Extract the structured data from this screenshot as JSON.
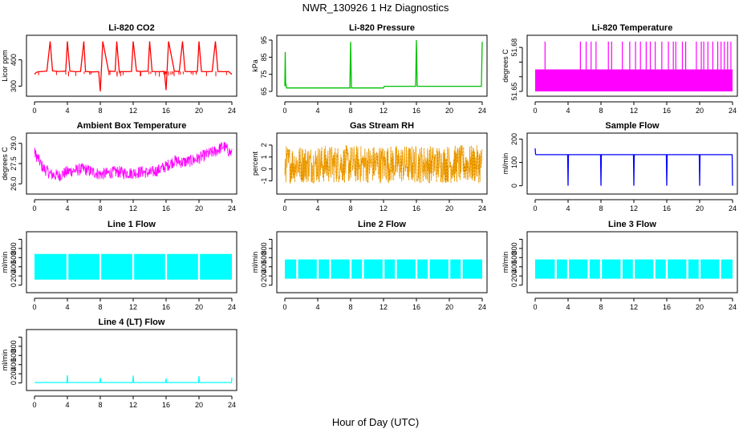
{
  "figure": {
    "title": "NWR_130926  1 Hz Diagnostics",
    "xlabel": "Hour of Day (UTC)"
  },
  "chart_data": [
    {
      "id": "li820_co2",
      "type": "line",
      "title": "Li-820 CO2",
      "ylabel": "Licor ppm",
      "color": "#ff0000",
      "xlim": [
        0,
        24
      ],
      "xticks": [
        0,
        4,
        8,
        12,
        16,
        20,
        24
      ],
      "ylim": [
        280,
        475
      ],
      "yticks": [
        300,
        400
      ],
      "series": [
        {
          "x": [
            0,
            0.2,
            0.5,
            1.0,
            1.5,
            1.9,
            2.2,
            3.0,
            3.8,
            4.0,
            4.3,
            5.0,
            5.6,
            6.0,
            6.2,
            7.0,
            7.8,
            8.0,
            8.3,
            9.0,
            9.8,
            10.0,
            10.3,
            11.0,
            11.8,
            12.0,
            12.4,
            13.0,
            13.8,
            14.0,
            14.3,
            15.0,
            15.8,
            16.0,
            16.3,
            17.0,
            17.6,
            18.0,
            18.3,
            19.0,
            19.8,
            20.0,
            20.3,
            21.0,
            21.6,
            22.0,
            22.3,
            23.0,
            23.6,
            24.0
          ],
          "y": [
            345,
            352,
            355,
            356,
            357,
            470,
            358,
            356,
            357,
            470,
            357,
            355,
            356,
            470,
            356,
            354,
            355,
            280,
            470,
            357,
            356,
            470,
            356,
            355,
            356,
            470,
            357,
            356,
            357,
            470,
            356,
            355,
            356,
            285,
            470,
            357,
            356,
            470,
            356,
            355,
            356,
            470,
            356,
            355,
            356,
            470,
            356,
            355,
            356,
            345
          ]
        }
      ]
    },
    {
      "id": "li820_pressure",
      "type": "line",
      "title": "Li-820 Pressure",
      "ylabel": "kPa",
      "color": "#00c000",
      "xlim": [
        0,
        24
      ],
      "xticks": [
        0,
        4,
        8,
        12,
        16,
        20,
        24
      ],
      "ylim": [
        65,
        95
      ],
      "yticks": [
        65,
        75,
        85,
        95
      ],
      "series": [
        {
          "x": [
            0,
            0.05,
            0.1,
            0.2,
            2,
            4,
            6,
            7.9,
            8.0,
            8.1,
            10,
            12,
            12.1,
            14,
            15.9,
            16.0,
            16.1,
            18,
            20,
            22,
            23.9,
            24.0
          ],
          "y": [
            68,
            88,
            70,
            67,
            67,
            67,
            67,
            67,
            94,
            67,
            67,
            67,
            68,
            68,
            68,
            95,
            68,
            68,
            68,
            68,
            68,
            94
          ]
        }
      ]
    },
    {
      "id": "li820_temperature",
      "type": "area",
      "title": "Li-820 Temperature",
      "ylabel": "degrees C",
      "color": "#ff00ff",
      "xlim": [
        0,
        24
      ],
      "xticks": [
        0,
        4,
        8,
        12,
        16,
        20,
        24
      ],
      "ylim": [
        51.65,
        51.685
      ],
      "yticks": [
        51.65,
        51.66,
        51.67,
        51.68
      ],
      "yticklabels": [
        "51.65",
        "",
        "",
        "51.68"
      ],
      "series": [
        {
          "x": [
            0,
            24
          ],
          "y": [
            51.665,
            51.665
          ],
          "baseline": 51.65,
          "spikes_x": [
            1.2,
            5.5,
            6.2,
            6.8,
            7.4,
            8.9,
            9.3,
            10.6,
            11.5,
            12.2,
            12.8,
            13.5,
            14.0,
            14.6,
            15.4,
            16.2,
            16.8,
            17.1,
            17.9,
            18.3,
            19.6,
            20.2,
            20.5,
            21.0,
            21.6,
            22.2,
            22.6,
            23.0,
            23.4,
            23.8
          ],
          "spike_y": 51.684
        }
      ]
    },
    {
      "id": "ambient_box_temperature",
      "type": "line",
      "title": "Ambient Box Temperature",
      "ylabel": "degrees C",
      "color": "#ff00ff",
      "xlim": [
        0,
        24
      ],
      "xticks": [
        0,
        4,
        8,
        12,
        16,
        20,
        24
      ],
      "ylim": [
        25.6,
        29.4
      ],
      "yticks": [
        26.0,
        27.5,
        29.0
      ],
      "yticklabels": [
        "26.0",
        "27.5",
        "29.0"
      ],
      "band": 0.9,
      "series": [
        {
          "x": [
            0,
            0.5,
            1,
            2,
            3,
            4,
            5,
            6,
            7,
            8,
            9,
            10,
            11,
            12,
            13,
            14,
            15,
            16,
            17,
            18,
            19,
            20,
            21,
            22,
            23,
            24
          ],
          "y": [
            28.3,
            27.8,
            27.2,
            26.7,
            26.6,
            26.9,
            27.0,
            27.1,
            26.9,
            26.7,
            26.8,
            26.9,
            26.8,
            26.8,
            26.9,
            26.8,
            27.0,
            27.3,
            27.7,
            27.6,
            27.7,
            27.9,
            28.2,
            28.4,
            28.8,
            28.2
          ]
        }
      ]
    },
    {
      "id": "gas_stream_rh",
      "type": "line",
      "title": "Gas Stream RH",
      "ylabel": "percent",
      "color": "#ffa500",
      "xlim": [
        0,
        24
      ],
      "xticks": [
        0,
        4,
        8,
        12,
        16,
        20,
        24
      ],
      "ylim": [
        -1.7,
        2.6
      ],
      "yticks": [
        -1,
        0,
        1,
        2
      ],
      "band_low": -1.2,
      "band_high": 2.0,
      "series": [
        {
          "x": [
            0,
            4,
            8,
            12,
            16,
            20,
            24
          ],
          "y": [
            0.4,
            0.5,
            0.4,
            0.5,
            0.5,
            0.5,
            0.4
          ]
        }
      ]
    },
    {
      "id": "sample_flow",
      "type": "line",
      "title": "Sample Flow",
      "ylabel": "ml/min",
      "color": "#0000ff",
      "xlim": [
        0,
        24
      ],
      "xticks": [
        0,
        4,
        8,
        12,
        16,
        20,
        24
      ],
      "ylim": [
        -15,
        205
      ],
      "yticks": [
        0,
        100,
        200
      ],
      "series": [
        {
          "x": [
            0,
            0.05,
            0.1,
            3.95,
            4.0,
            4.05,
            7.95,
            8.0,
            8.05,
            11.95,
            12.0,
            12.05,
            15.95,
            16.0,
            16.05,
            19.95,
            20.0,
            20.05,
            23.95,
            24.0
          ],
          "y": [
            160,
            135,
            133,
            133,
            0,
            133,
            133,
            0,
            133,
            133,
            0,
            133,
            133,
            0,
            133,
            133,
            0,
            133,
            133,
            0
          ]
        }
      ]
    },
    {
      "id": "line1_flow",
      "type": "area",
      "title": "Line 1 Flow",
      "ylabel": "ml/min",
      "color": "#00ffff",
      "xlim": [
        0,
        24
      ],
      "xticks": [
        0,
        4,
        8,
        12,
        16,
        20,
        24
      ],
      "ylim": [
        -60,
        1060
      ],
      "yticks": [
        0,
        200,
        400,
        600,
        800,
        1000
      ],
      "yticklabels": [
        "0",
        "200",
        "400",
        "600",
        "800",
        ""
      ],
      "band_low": 120,
      "band_high": 680,
      "gaps_x": [
        4,
        8,
        12,
        16,
        20
      ],
      "series": [
        {
          "x": [
            0,
            24
          ],
          "y": [
            680,
            680
          ]
        }
      ]
    },
    {
      "id": "line2_flow",
      "type": "area",
      "title": "Line 2 Flow",
      "ylabel": "ml/min",
      "color": "#00ffff",
      "xlim": [
        0,
        24
      ],
      "xticks": [
        0,
        4,
        8,
        12,
        16,
        20,
        24
      ],
      "ylim": [
        -60,
        1060
      ],
      "yticks": [
        0,
        200,
        400,
        600,
        800,
        1000
      ],
      "yticklabels": [
        "0",
        "200",
        "400",
        "600",
        "800",
        ""
      ],
      "band_low": 140,
      "band_high": 560,
      "gaps_x": [
        1.5,
        4,
        5.5,
        8,
        9.5,
        12,
        13.5,
        16,
        17.5,
        20,
        21.5
      ],
      "series": [
        {
          "x": [
            0,
            24
          ],
          "y": [
            560,
            560
          ]
        }
      ]
    },
    {
      "id": "line3_flow",
      "type": "area",
      "title": "Line 3 Flow",
      "ylabel": "ml/min",
      "color": "#00ffff",
      "xlim": [
        0,
        24
      ],
      "xticks": [
        0,
        4,
        8,
        12,
        16,
        20,
        24
      ],
      "ylim": [
        -60,
        1060
      ],
      "yticks": [
        0,
        200,
        400,
        600,
        800,
        1000
      ],
      "yticklabels": [
        "0",
        "200",
        "400",
        "600",
        "800",
        ""
      ],
      "band_low": 140,
      "band_high": 560,
      "gaps_x": [
        2.5,
        4,
        6.5,
        8,
        10.5,
        12,
        14.5,
        16,
        18.5,
        20,
        22.5
      ],
      "series": [
        {
          "x": [
            0,
            24
          ],
          "y": [
            560,
            560
          ]
        }
      ]
    },
    {
      "id": "line4_flow",
      "type": "line",
      "title": "Line 4 (LT) Flow",
      "ylabel": "ml/min",
      "color": "#00ffff",
      "xlim": [
        0,
        24
      ],
      "xticks": [
        0,
        4,
        8,
        12,
        16,
        20,
        24
      ],
      "ylim": [
        -60,
        1060
      ],
      "yticks": [
        0,
        200,
        400,
        600,
        800,
        1000
      ],
      "yticklabels": [
        "0",
        "200",
        "400",
        "600",
        "800",
        ""
      ],
      "series": [
        {
          "x": [
            0,
            3.95,
            4.0,
            4.05,
            7.95,
            8.0,
            8.05,
            11.95,
            12.0,
            12.05,
            15.95,
            16.0,
            16.05,
            19.95,
            20.0,
            20.05,
            23.95,
            24.0
          ],
          "y": [
            10,
            10,
            170,
            10,
            10,
            110,
            10,
            10,
            160,
            10,
            10,
            100,
            10,
            10,
            150,
            10,
            10,
            120
          ]
        }
      ]
    }
  ]
}
